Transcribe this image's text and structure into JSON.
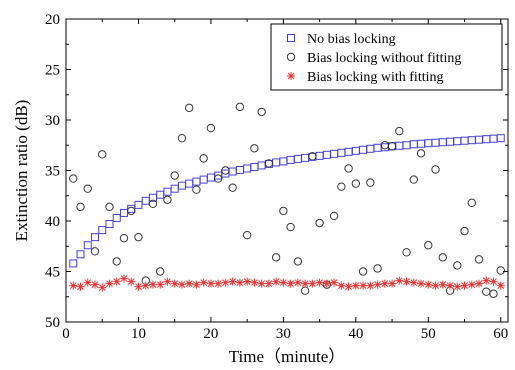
{
  "chart_data": {
    "type": "scatter",
    "xlabel": "Time（minute）",
    "ylabel": "Extinction ratio (dB)",
    "xlim": [
      0,
      61
    ],
    "ylim": [
      50,
      20
    ],
    "y_axis_inverted": true,
    "xticks": [
      0,
      10,
      20,
      30,
      40,
      50,
      60
    ],
    "xtick_labels": [
      "0",
      "10",
      "20",
      "30",
      "40",
      "50",
      "60"
    ],
    "yticks": [
      20,
      25,
      30,
      35,
      40,
      45,
      50
    ],
    "ytick_labels": [
      "20",
      "25",
      "30",
      "35",
      "40",
      "45",
      "50"
    ],
    "legend_position": "top-right",
    "grid": false,
    "series": [
      {
        "name": "No bias locking",
        "marker": "square",
        "color": "#4040dd",
        "x": [
          1,
          2,
          3,
          4,
          5,
          6,
          7,
          8,
          9,
          10,
          11,
          12,
          13,
          14,
          15,
          16,
          17,
          18,
          19,
          20,
          21,
          22,
          23,
          24,
          25,
          26,
          27,
          28,
          29,
          30,
          31,
          32,
          33,
          34,
          35,
          36,
          37,
          38,
          39,
          40,
          41,
          42,
          43,
          44,
          45,
          46,
          47,
          48,
          49,
          50,
          51,
          52,
          53,
          54,
          55,
          56,
          57,
          58,
          59,
          60
        ],
        "y": [
          44.2,
          43.3,
          42.4,
          41.6,
          40.9,
          40.3,
          39.7,
          39.2,
          38.8,
          38.4,
          38.0,
          37.7,
          37.4,
          37.1,
          36.8,
          36.5,
          36.3,
          36.1,
          35.9,
          35.7,
          35.5,
          35.3,
          35.1,
          34.95,
          34.8,
          34.65,
          34.5,
          34.35,
          34.2,
          34.1,
          33.95,
          33.85,
          33.75,
          33.65,
          33.55,
          33.45,
          33.35,
          33.25,
          33.15,
          33.05,
          32.95,
          32.85,
          32.75,
          32.7,
          32.6,
          32.55,
          32.5,
          32.4,
          32.35,
          32.3,
          32.25,
          32.2,
          32.15,
          32.1,
          32.05,
          32.0,
          31.95,
          31.9,
          31.85,
          31.8
        ]
      },
      {
        "name": "Bias locking without fitting",
        "marker": "circle",
        "color": "#333333",
        "x": [
          1,
          2,
          3,
          4,
          5,
          6,
          7,
          8,
          9,
          10,
          11,
          12,
          13,
          14,
          15,
          16,
          17,
          18,
          19,
          20,
          21,
          22,
          23,
          24,
          25,
          26,
          27,
          28,
          29,
          30,
          31,
          32,
          33,
          34,
          35,
          36,
          37,
          38,
          39,
          40,
          41,
          42,
          43,
          44,
          45,
          46,
          47,
          48,
          49,
          50,
          51,
          52,
          53,
          54,
          55,
          56,
          57,
          58,
          59,
          60
        ],
        "y": [
          35.8,
          38.6,
          36.8,
          43.0,
          33.4,
          38.6,
          44.0,
          41.7,
          39.0,
          41.6,
          45.9,
          38.3,
          45.0,
          37.9,
          35.5,
          31.8,
          28.8,
          36.9,
          33.8,
          30.8,
          35.8,
          35.0,
          36.7,
          28.7,
          41.4,
          32.8,
          29.2,
          34.3,
          43.6,
          39.0,
          40.6,
          44.0,
          46.9,
          33.6,
          40.2,
          46.3,
          39.5,
          36.6,
          34.8,
          36.3,
          45.0,
          36.2,
          44.7,
          32.5,
          32.6,
          31.1,
          43.1,
          35.9,
          33.3,
          42.4,
          34.9,
          43.6,
          46.9,
          44.4,
          41.0,
          38.2,
          43.8,
          47.0,
          47.2,
          44.9
        ]
      },
      {
        "name": "Bias locking with fitting",
        "marker": "asterisk",
        "color": "#ee3333",
        "x": [
          1,
          2,
          3,
          4,
          5,
          6,
          7,
          8,
          9,
          10,
          11,
          12,
          13,
          14,
          15,
          16,
          17,
          18,
          19,
          20,
          21,
          22,
          23,
          24,
          25,
          26,
          27,
          28,
          29,
          30,
          31,
          32,
          33,
          34,
          35,
          36,
          37,
          38,
          39,
          40,
          41,
          42,
          43,
          44,
          45,
          46,
          47,
          48,
          49,
          50,
          51,
          52,
          53,
          54,
          55,
          56,
          57,
          58,
          59,
          60
        ],
        "y": [
          46.4,
          46.5,
          46.1,
          46.3,
          46.6,
          46.2,
          46.0,
          45.7,
          46.0,
          46.5,
          46.4,
          46.3,
          46.3,
          46.0,
          46.2,
          46.3,
          46.2,
          46.3,
          46.1,
          46.2,
          46.2,
          46.1,
          46.0,
          46.1,
          46.0,
          46.1,
          46.2,
          46.2,
          46.0,
          46.1,
          46.2,
          46.1,
          46.2,
          46.2,
          46.1,
          46.2,
          46.1,
          46.4,
          46.5,
          46.4,
          46.4,
          46.4,
          46.3,
          46.2,
          46.2,
          45.9,
          46.0,
          46.1,
          46.2,
          46.3,
          46.4,
          46.3,
          46.4,
          46.5,
          46.4,
          46.3,
          46.2,
          45.9,
          46.0,
          46.4
        ]
      }
    ]
  }
}
